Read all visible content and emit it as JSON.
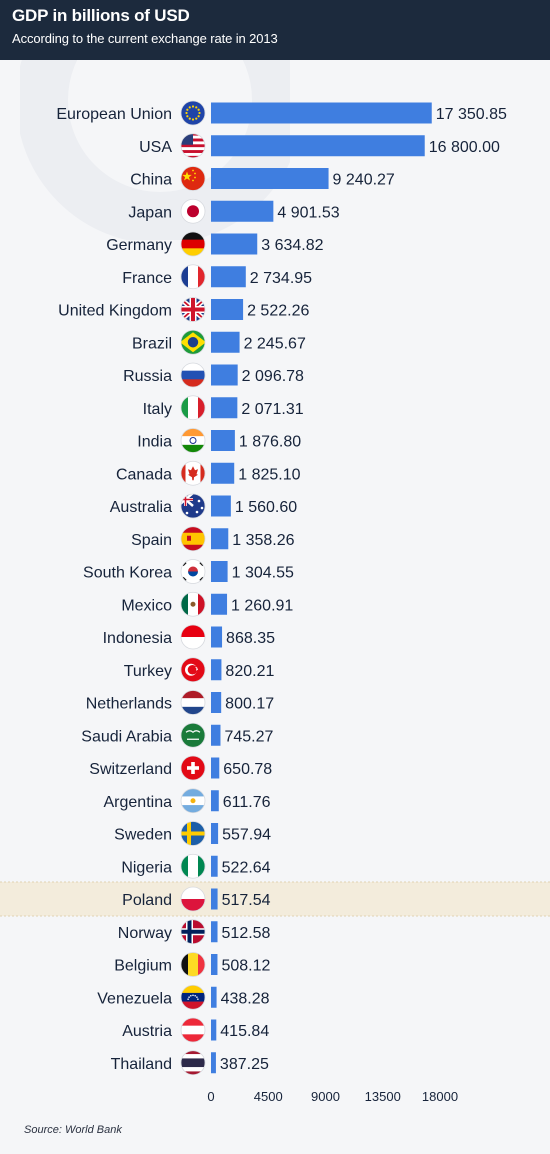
{
  "header": {
    "title": "GDP in billions of USD",
    "subtitle": "According to the current exchange rate in 2013"
  },
  "source": "Source: World Bank",
  "colors": {
    "header_bg": "#1c2a3d",
    "bar": "#3f7ee0",
    "highlight_row": "#f3ecdc",
    "text": "#16233a"
  },
  "chart_data": {
    "type": "bar",
    "orientation": "horizontal",
    "title": "GDP in billions of USD",
    "subtitle": "According to the current exchange rate in 2013",
    "categories": [
      "European Union",
      "USA",
      "China",
      "Japan",
      "Germany",
      "France",
      "United Kingdom",
      "Brazil",
      "Russia",
      "Italy",
      "India",
      "Canada",
      "Australia",
      "Spain",
      "South Korea",
      "Mexico",
      "Indonesia",
      "Turkey",
      "Netherlands",
      "Saudi Arabia",
      "Switzerland",
      "Argentina",
      "Sweden",
      "Nigeria",
      "Poland",
      "Norway",
      "Belgium",
      "Venezuela",
      "Austria",
      "Thailand"
    ],
    "values": [
      17350.85,
      16800.0,
      9240.27,
      4901.53,
      3634.82,
      2734.95,
      2522.26,
      2245.67,
      2096.78,
      2071.31,
      1876.8,
      1825.1,
      1560.6,
      1358.26,
      1304.55,
      1260.91,
      868.35,
      820.21,
      800.17,
      745.27,
      650.78,
      611.76,
      557.94,
      522.64,
      517.54,
      512.58,
      508.12,
      438.28,
      415.84,
      387.25
    ],
    "value_labels": [
      "17 350.85",
      "16 800.00",
      "9 240.27",
      "4 901.53",
      "3 634.82",
      "2 734.95",
      "2 522.26",
      "2 245.67",
      "2 096.78",
      "2 071.31",
      "1 876.80",
      "1 825.10",
      "1 560.60",
      "1 358.26",
      "1 304.55",
      "1 260.91",
      "868.35",
      "820.21",
      "800.17",
      "745.27",
      "650.78",
      "611.76",
      "557.94",
      "522.64",
      "517.54",
      "512.58",
      "508.12",
      "438.28",
      "415.84",
      "387.25"
    ],
    "flag_icons": [
      "eu-flag-icon",
      "usa-flag-icon",
      "china-flag-icon",
      "japan-flag-icon",
      "germany-flag-icon",
      "france-flag-icon",
      "uk-flag-icon",
      "brazil-flag-icon",
      "russia-flag-icon",
      "italy-flag-icon",
      "india-flag-icon",
      "canada-flag-icon",
      "australia-flag-icon",
      "spain-flag-icon",
      "south-korea-flag-icon",
      "mexico-flag-icon",
      "indonesia-flag-icon",
      "turkey-flag-icon",
      "netherlands-flag-icon",
      "saudi-arabia-flag-icon",
      "switzerland-flag-icon",
      "argentina-flag-icon",
      "sweden-flag-icon",
      "nigeria-flag-icon",
      "poland-flag-icon",
      "norway-flag-icon",
      "belgium-flag-icon",
      "venezuela-flag-icon",
      "austria-flag-icon",
      "thailand-flag-icon"
    ],
    "highlight": "Poland",
    "xticks": [
      0,
      4500,
      9000,
      13500,
      18000
    ],
    "xtick_labels": [
      "0",
      "4500",
      "9000",
      "13500",
      "18000"
    ],
    "xlim": [
      0,
      18000
    ],
    "grid": false,
    "legend": "none"
  }
}
